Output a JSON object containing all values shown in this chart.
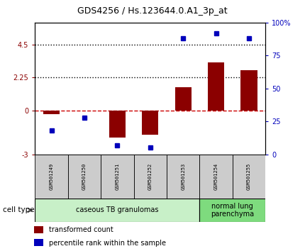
{
  "title": "GDS4256 / Hs.123644.0.A1_3p_at",
  "samples": [
    "GSM501249",
    "GSM501250",
    "GSM501251",
    "GSM501252",
    "GSM501253",
    "GSM501254",
    "GSM501255"
  ],
  "transformed_count": [
    -0.25,
    0.0,
    -1.85,
    -1.65,
    1.6,
    3.3,
    2.75
  ],
  "percentile_rank": [
    18,
    28,
    7,
    5,
    88,
    92,
    88
  ],
  "bar_color": "#8B0000",
  "dot_color": "#0000BB",
  "ylim_left": [
    -3,
    6
  ],
  "ylim_right": [
    0,
    100
  ],
  "yticks_left": [
    -3,
    0,
    2.25,
    4.5
  ],
  "ytick_labels_left": [
    "-3",
    "0",
    "2.25",
    "4.5"
  ],
  "yticks_right": [
    0,
    25,
    50,
    75,
    100
  ],
  "ytick_labels_right": [
    "0",
    "25",
    "50",
    "75",
    "100%"
  ],
  "hline_y": [
    0.0,
    2.25,
    4.5
  ],
  "hline_styles": [
    "dashed",
    "dotted",
    "dotted"
  ],
  "hline_colors": [
    "#CC0000",
    "black",
    "black"
  ],
  "hline_lw": [
    1.0,
    1.0,
    1.0
  ],
  "group1_count": 5,
  "group2_count": 2,
  "group1_label": "caseous TB granulomas",
  "group2_label": "normal lung\nparenchyma",
  "group1_color": "#c8f0c8",
  "group2_color": "#7EDB7E",
  "sample_box_color": "#cccccc",
  "cell_type_label": "cell type",
  "legend_bar_label": "transformed count",
  "legend_dot_label": "percentile rank within the sample",
  "bar_width": 0.5,
  "dot_size": 5,
  "background_color": "#ffffff",
  "title_fontsize": 9,
  "tick_fontsize": 7,
  "sample_fontsize": 5,
  "group_fontsize": 7,
  "legend_fontsize": 7
}
